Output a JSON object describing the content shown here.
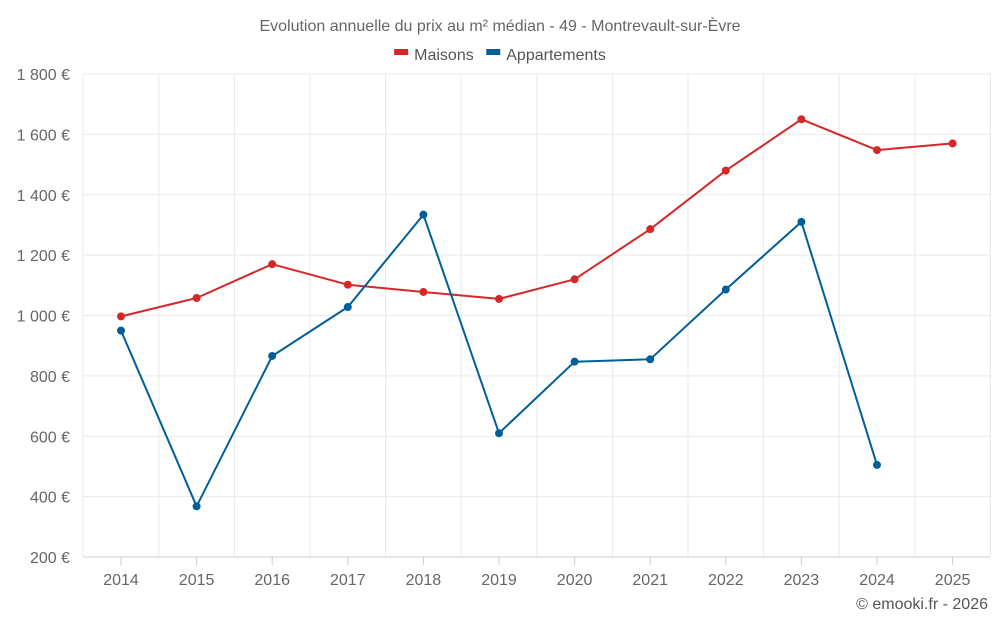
{
  "chart_data": {
    "type": "line",
    "title": "Evolution annuelle du prix au m² médian - 49 - Montrevault-sur-Èvre",
    "categories": [
      "2014",
      "2015",
      "2016",
      "2017",
      "2018",
      "2019",
      "2020",
      "2021",
      "2022",
      "2023",
      "2024",
      "2025"
    ],
    "series": [
      {
        "name": "Maisons",
        "color": "#d62728",
        "values": [
          997,
          1058,
          1170,
          1102,
          1078,
          1055,
          1120,
          1286,
          1480,
          1650,
          1548,
          1570
        ]
      },
      {
        "name": "Appartements",
        "color": "#005f99",
        "values": [
          950,
          368,
          866,
          1028,
          1334,
          610,
          847,
          855,
          1086,
          1310,
          505,
          null
        ]
      }
    ],
    "y_ticks": [
      200,
      400,
      600,
      800,
      1000,
      1200,
      1400,
      1600,
      1800
    ],
    "y_tick_labels": [
      "200 €",
      "400 €",
      "600 €",
      "800 €",
      "1 000 €",
      "1 200 €",
      "1 400 €",
      "1 600 €",
      "1 800 €"
    ],
    "ylim": [
      200,
      1800
    ],
    "xlabel": "",
    "ylabel": "",
    "grid": true,
    "legend_position": "top-center"
  },
  "credit": "© emooki.fr - 2026"
}
